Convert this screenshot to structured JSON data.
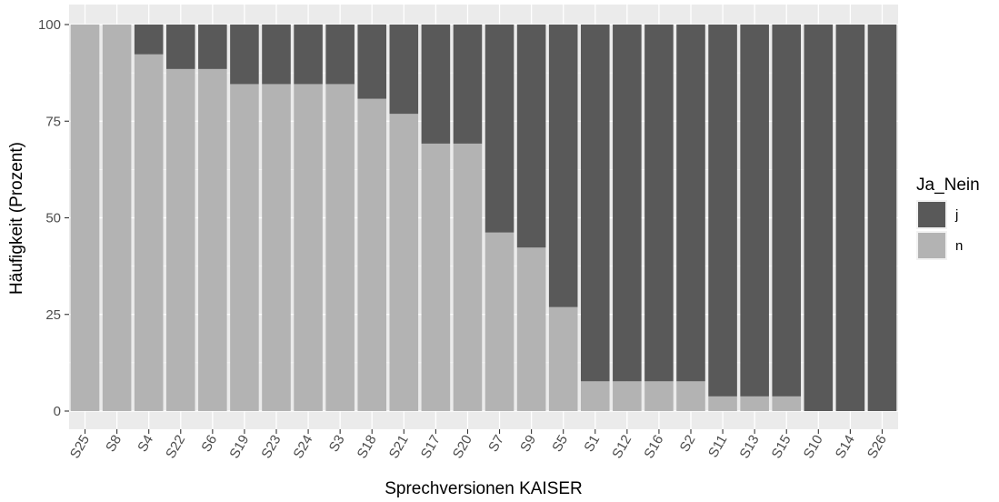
{
  "chart_data": {
    "type": "bar",
    "stacked": true,
    "xlabel": "Sprechversionen KAISER",
    "ylabel": "Häufigkeit (Prozent)",
    "ylim": [
      0,
      100
    ],
    "yticks": [
      0,
      25,
      50,
      75,
      100
    ],
    "grid": true,
    "legend_placement": "right",
    "legend_title": "Ja_Nein",
    "categories": [
      "S25",
      "S8",
      "S4",
      "S22",
      "S6",
      "S19",
      "S23",
      "S24",
      "S3",
      "S18",
      "S21",
      "S17",
      "S20",
      "S7",
      "S9",
      "S5",
      "S1",
      "S12",
      "S16",
      "S2",
      "S11",
      "S13",
      "S15",
      "S10",
      "S14",
      "S26"
    ],
    "series": [
      {
        "name": "j",
        "color": "#595959",
        "values": [
          0,
          0,
          7.7,
          11.5,
          11.5,
          15.4,
          15.4,
          15.4,
          15.4,
          19.2,
          23.1,
          30.8,
          30.8,
          53.8,
          57.7,
          73.1,
          92.3,
          92.3,
          92.3,
          92.3,
          96.2,
          96.2,
          96.2,
          100,
          100,
          100
        ]
      },
      {
        "name": "n",
        "color": "#b3b3b3",
        "values": [
          100,
          100,
          92.3,
          88.5,
          88.5,
          84.6,
          84.6,
          84.6,
          84.6,
          80.8,
          76.9,
          69.2,
          69.2,
          46.2,
          42.3,
          26.9,
          7.7,
          7.7,
          7.7,
          7.7,
          3.8,
          3.8,
          3.8,
          0,
          0,
          0
        ]
      }
    ]
  }
}
